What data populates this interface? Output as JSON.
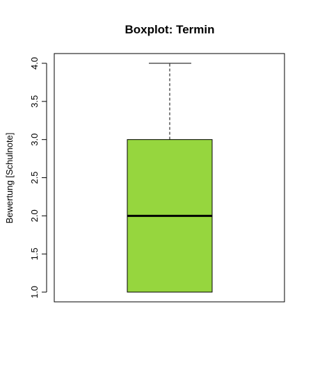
{
  "chart_data": {
    "type": "boxplot",
    "title": "Boxplot: Termin",
    "xlabel": "",
    "ylabel": "Bewertung [Schulnote]",
    "ylim": [
      0.95,
      4.1
    ],
    "yticks": [
      1.0,
      1.5,
      2.0,
      2.5,
      3.0,
      3.5,
      4.0
    ],
    "ytick_labels": [
      "1.0",
      "1.5",
      "2.0",
      "2.5",
      "3.0",
      "3.5",
      "4.0"
    ],
    "box": {
      "min": 1.0,
      "q1": 1.0,
      "median": 2.0,
      "q3": 3.0,
      "max": 4.0
    },
    "box_fill_color": "#96D63E",
    "grid": false
  }
}
